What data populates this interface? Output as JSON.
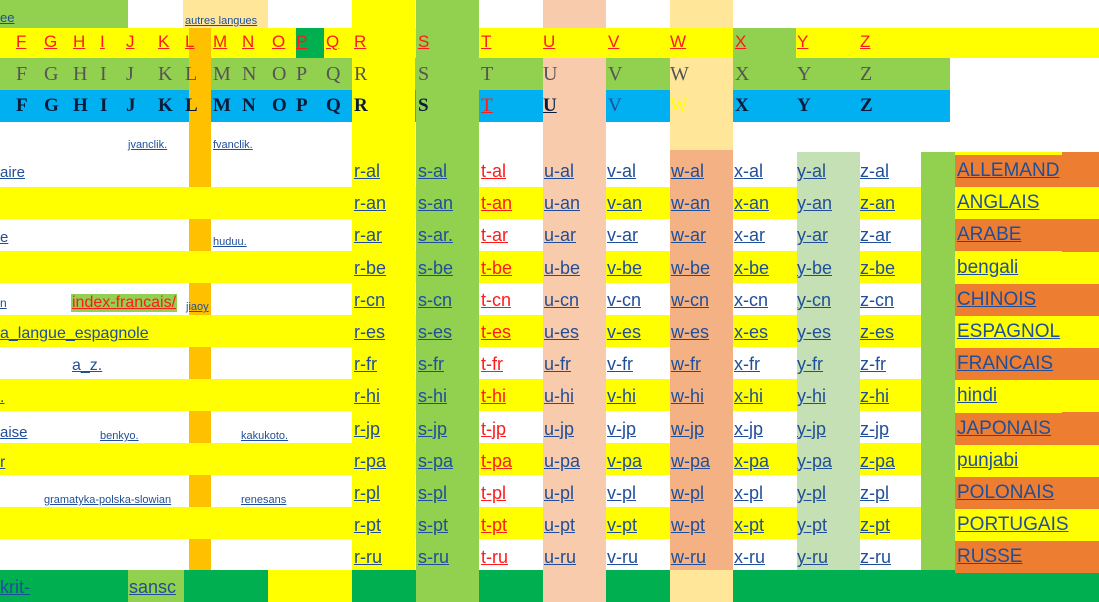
{
  "colors": {
    "yellow": "#ffff00",
    "lime": "#92d050",
    "cyan": "#00b0f0",
    "green": "#00b050",
    "orange": "#ffc000",
    "peach": "#f8cbad",
    "sand": "#ffe699",
    "salmon": "#f4b183",
    "sage": "#c5e0b4",
    "rust": "#ed7d31",
    "link": "#1f4e9a",
    "red": "#ff1a1a"
  },
  "header": {
    "top_left": "ee",
    "other_languages": "autres langues"
  },
  "alphabet_row_1": [
    "F",
    "G",
    "H",
    "I",
    "J",
    "K",
    "L",
    "M",
    "N",
    "O",
    "P",
    "Q",
    "R",
    "S",
    "T",
    "U",
    "V",
    "W",
    "X",
    "Y",
    "Z"
  ],
  "alphabet_row_2": [
    "F",
    "G",
    "H",
    "I",
    "J",
    "K",
    "L",
    "M",
    "N",
    "O",
    "P",
    "Q",
    "R",
    "S",
    "T",
    "U",
    "V",
    "W",
    "X",
    "Y",
    "Z"
  ],
  "alphabet_row_3": [
    "F",
    "G",
    "H",
    "I",
    "J",
    "K",
    "L",
    "M",
    "N",
    "O",
    "P",
    "Q",
    "R",
    "S",
    "T",
    "U",
    "V",
    "W",
    "X",
    "Y",
    "Z"
  ],
  "small_links": {
    "jvanclik": "jvanclik.",
    "fvanclik": "fvanclik.",
    "huduu": "huduu.",
    "jiaoy": "jiaoy",
    "benkyo": "benkyo.",
    "kakukoto": "kakukoto.",
    "gramatyka": "gramatyka-polska-slowian",
    "renesans": "renesans"
  },
  "left_fragments": [
    "aire",
    "e",
    "n",
    "a_langue_espagnole",
    "a_z.",
    ".",
    "aise",
    "r"
  ],
  "index_francais": "index-francais/",
  "grid_rows": [
    {
      "suffix": "al",
      "cells": [
        "r-al",
        "s-al",
        "t-al",
        "u-al",
        "v-al",
        "w-al",
        "x-al",
        "y-al",
        "z-al"
      ],
      "language": "ALLEMAND"
    },
    {
      "suffix": "an",
      "cells": [
        "r-an",
        "s-an",
        "t-an",
        "u-an",
        "v-an",
        "w-an",
        "x-an",
        "y-an",
        "z-an"
      ],
      "language": "ANGLAIS"
    },
    {
      "suffix": "ar",
      "cells": [
        "r-ar",
        "s-ar.",
        "t-ar",
        "u-ar",
        "v-ar",
        "w-ar",
        "x-ar",
        "y-ar",
        "z-ar"
      ],
      "language": "ARABE"
    },
    {
      "suffix": "be",
      "cells": [
        "r-be",
        "s-be",
        "t-be",
        "u-be",
        "v-be",
        "w-be",
        "x-be",
        "y-be",
        "z-be"
      ],
      "language": "bengali"
    },
    {
      "suffix": "cn",
      "cells": [
        "r-cn",
        "s-cn",
        "t-cn",
        "u-cn",
        "v-cn",
        "w-cn",
        "x-cn",
        "y-cn",
        "z-cn"
      ],
      "language": "CHINOIS"
    },
    {
      "suffix": "es",
      "cells": [
        "r-es",
        "s-es",
        "t-es",
        "u-es",
        "v-es",
        "w-es",
        "x-es",
        "y-es",
        "z-es"
      ],
      "language": "ESPAGNOL"
    },
    {
      "suffix": "fr",
      "cells": [
        "r-fr",
        "s-fr",
        "t-fr",
        "u-fr",
        "v-fr",
        "w-fr",
        "x-fr",
        "y-fr",
        "z-fr"
      ],
      "language": "FRANCAIS"
    },
    {
      "suffix": "hi",
      "cells": [
        "r-hi",
        "s-hi",
        "t-hi",
        "u-hi",
        "v-hi",
        "w-hi",
        "x-hi",
        "y-hi",
        "z-hi"
      ],
      "language": "hindi"
    },
    {
      "suffix": "jp",
      "cells": [
        "r-jp",
        "s-jp",
        "t-jp",
        "u-jp",
        "v-jp",
        "w-jp",
        "x-jp",
        "y-jp",
        "z-jp"
      ],
      "language": "JAPONAIS"
    },
    {
      "suffix": "pa",
      "cells": [
        "r-pa",
        "s-pa",
        "t-pa",
        "u-pa",
        "v-pa",
        "w-pa",
        "x-pa",
        "y-pa",
        "z-pa"
      ],
      "language": "punjabi"
    },
    {
      "suffix": "pl",
      "cells": [
        "r-pl",
        "s-pl",
        "t-pl",
        "u-pl",
        "v-pl",
        "w-pl",
        "x-pl",
        "y-pl",
        "z-pl"
      ],
      "language": "POLONAIS"
    },
    {
      "suffix": "pt",
      "cells": [
        "r-pt",
        "s-pt",
        "t-pt",
        "u-pt",
        "v-pt",
        "w-pt",
        "x-pt",
        "y-pt",
        "z-pt"
      ],
      "language": "PORTUGAIS"
    },
    {
      "suffix": "ru",
      "cells": [
        "r-ru",
        "s-ru",
        "t-ru",
        "u-ru",
        "v-ru",
        "w-ru",
        "x-ru",
        "y-ru",
        "z-ru"
      ],
      "language": "RUSSE"
    }
  ],
  "footer": {
    "krit": "krit-",
    "sansc": "sansc"
  }
}
